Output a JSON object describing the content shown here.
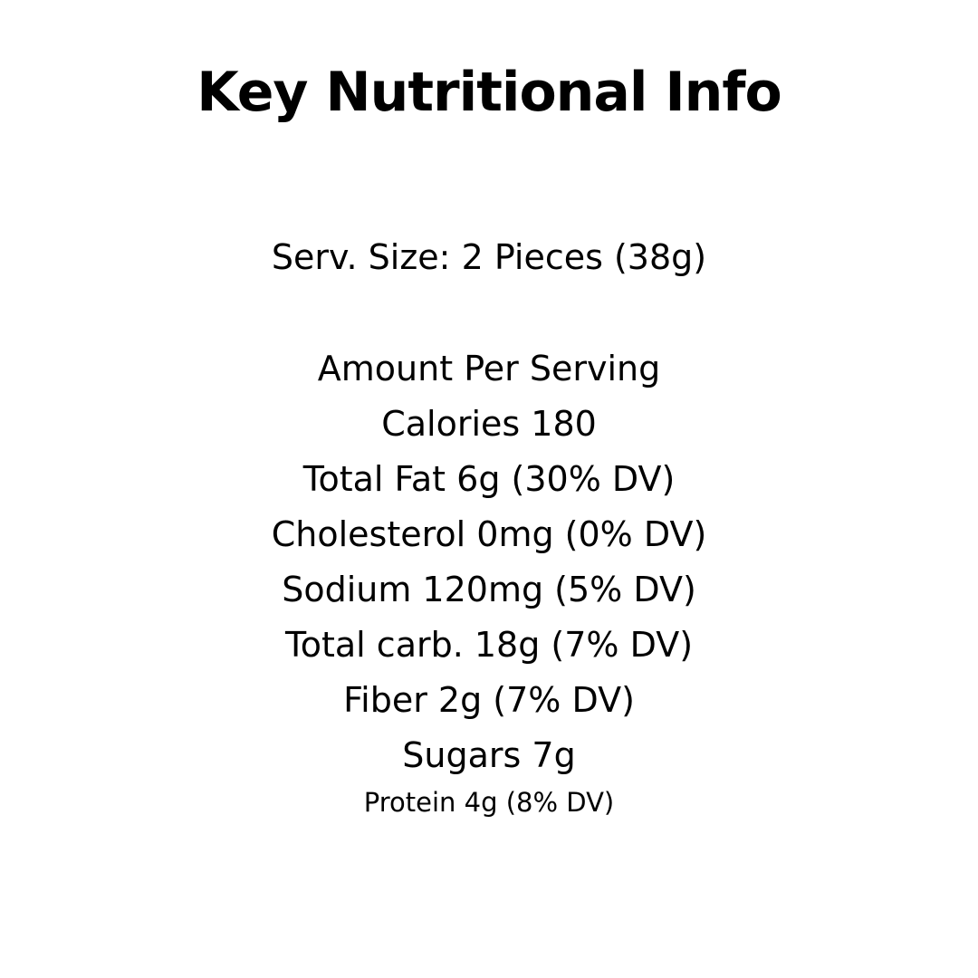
{
  "title": "Key Nutritional Info",
  "serving_size": "Serv. Size: 2 Pieces (38g)",
  "lines": [
    "Amount Per Serving",
    "Calories 180",
    "Total Fat 6g (30% DV)",
    "Cholesterol 0mg (0% DV)",
    "Sodium 120mg (5% DV)",
    "Total carb. 18g (7% DV)",
    "Fiber 2g (7% DV)",
    "Sugars 7g"
  ],
  "protein": "Protein 4g (8% DV)"
}
